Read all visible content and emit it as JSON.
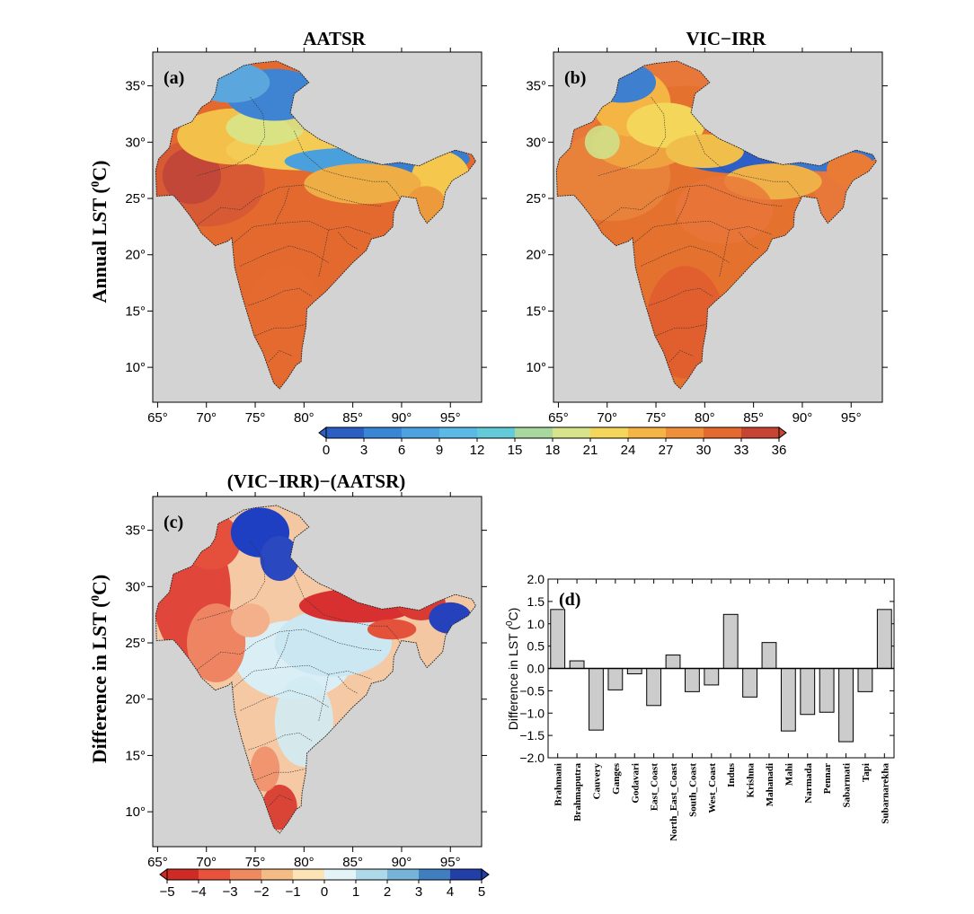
{
  "panels": [
    {
      "id": "a",
      "label": "(a)",
      "title": "AATSR"
    },
    {
      "id": "b",
      "label": "(b)",
      "title": "VIC−IRR"
    },
    {
      "id": "c",
      "label": "(c)",
      "title": "(VIC−IRR)−(AATSR)"
    }
  ],
  "row_labels": {
    "top": "Annual LST (⁰C)",
    "top_main": "Annual LST (",
    "top_sup": "0",
    "top_end": "C)",
    "bottom_main": "Difference in LST (",
    "bottom_sup": "0",
    "bottom_end": "C)"
  },
  "lon_ticks": [
    "65°",
    "70°",
    "75°",
    "80°",
    "85°",
    "90°",
    "95°"
  ],
  "lat_ticks": [
    "35°",
    "30°",
    "25°",
    "20°",
    "15°",
    "10°"
  ],
  "colorbar_lst": {
    "ticks": [
      "0",
      "3",
      "6",
      "9",
      "12",
      "15",
      "18",
      "21",
      "24",
      "27",
      "30",
      "33",
      "36"
    ],
    "colors": [
      "#2b5fc4",
      "#3a86d6",
      "#4da3e0",
      "#5ab9e6",
      "#62cad9",
      "#a8d8a0",
      "#d8e48a",
      "#f3d65a",
      "#f4b545",
      "#ef8f3a",
      "#e46a30",
      "#c74432"
    ]
  },
  "colorbar_diff": {
    "ticks": [
      "−5",
      "−4",
      "−3",
      "−2",
      "−1",
      "0",
      "1",
      "2",
      "3",
      "4",
      "5"
    ],
    "colors": [
      "#cf2b25",
      "#e8523a",
      "#ef8a5e",
      "#f5bb84",
      "#fbe3b5",
      "#e4f3f7",
      "#aed9e9",
      "#77b3d8",
      "#3f7ebf",
      "#213fa6"
    ]
  },
  "chart_data": {
    "type": "bar",
    "label": "(d)",
    "ylabel": "Difference in LST (⁰C)",
    "ylabel_main": "Difference in LST (",
    "ylabel_sup": "0",
    "ylabel_end": "C)",
    "ylim": [
      -2.0,
      2.0
    ],
    "yticks": [
      "2.0",
      "1.5",
      "1.0",
      "0.5",
      "0.0",
      "−0.5",
      "−1.0",
      "−1.5",
      "−2.0"
    ],
    "categories": [
      "Brahmani",
      "Brahmaputra",
      "Cauvery",
      "Ganges",
      "Godavari",
      "East_Coast",
      "North_East_Coast",
      "South_Coast",
      "West_Coast",
      "Indus",
      "Krishna",
      "Mahanadi",
      "Mahi",
      "Narmada",
      "Pennar",
      "Sabarmati",
      "Tapi",
      "Subarnarekha"
    ],
    "values": [
      1.32,
      0.17,
      -1.38,
      -0.48,
      -0.12,
      -0.83,
      0.3,
      -0.52,
      -0.37,
      1.21,
      -0.64,
      0.58,
      -1.4,
      -1.03,
      -0.98,
      -1.64,
      -0.52,
      1.32
    ],
    "bar_color": "#cccccc"
  }
}
